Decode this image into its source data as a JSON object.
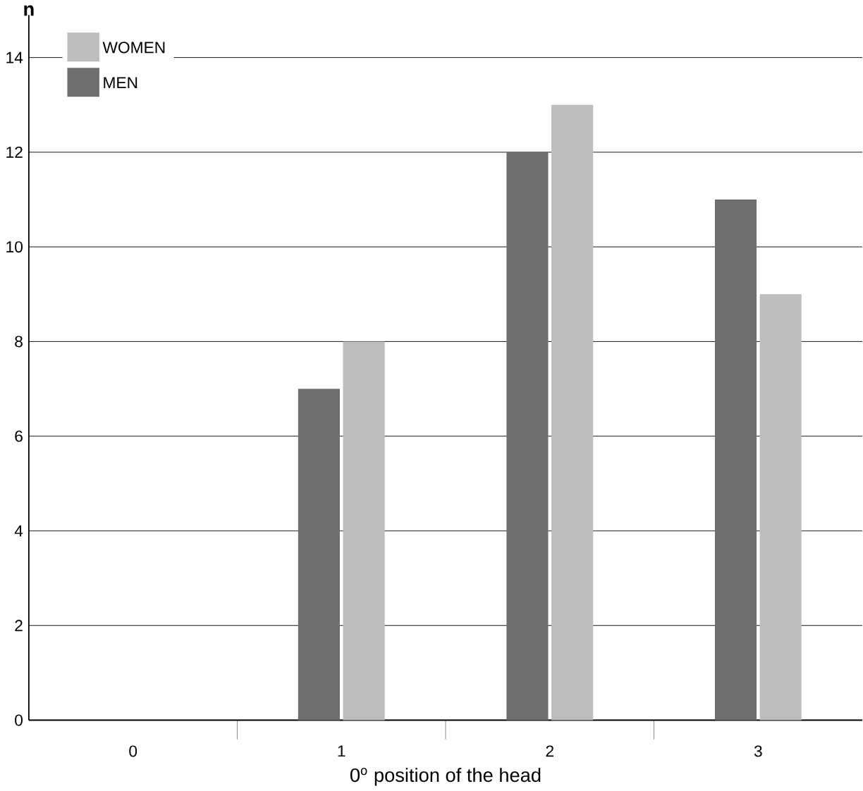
{
  "chart_data": {
    "type": "bar",
    "ylabel": "n",
    "xlabel": "0$^{o}$ position of the head",
    "categories": [
      "0",
      "1",
      "2",
      "3"
    ],
    "series": [
      {
        "name": "MEN",
        "color": "#6d6e70",
        "values": [
          0,
          7,
          12,
          11
        ]
      },
      {
        "name": "WOMEN",
        "color": "#bcbdbf",
        "values": [
          0,
          8,
          13,
          9
        ]
      }
    ],
    "ylim": [
      0,
      14.9
    ],
    "yticks": [
      0,
      2,
      4,
      6,
      8,
      10,
      12,
      14
    ],
    "grid": "y",
    "legend": "top left"
  }
}
